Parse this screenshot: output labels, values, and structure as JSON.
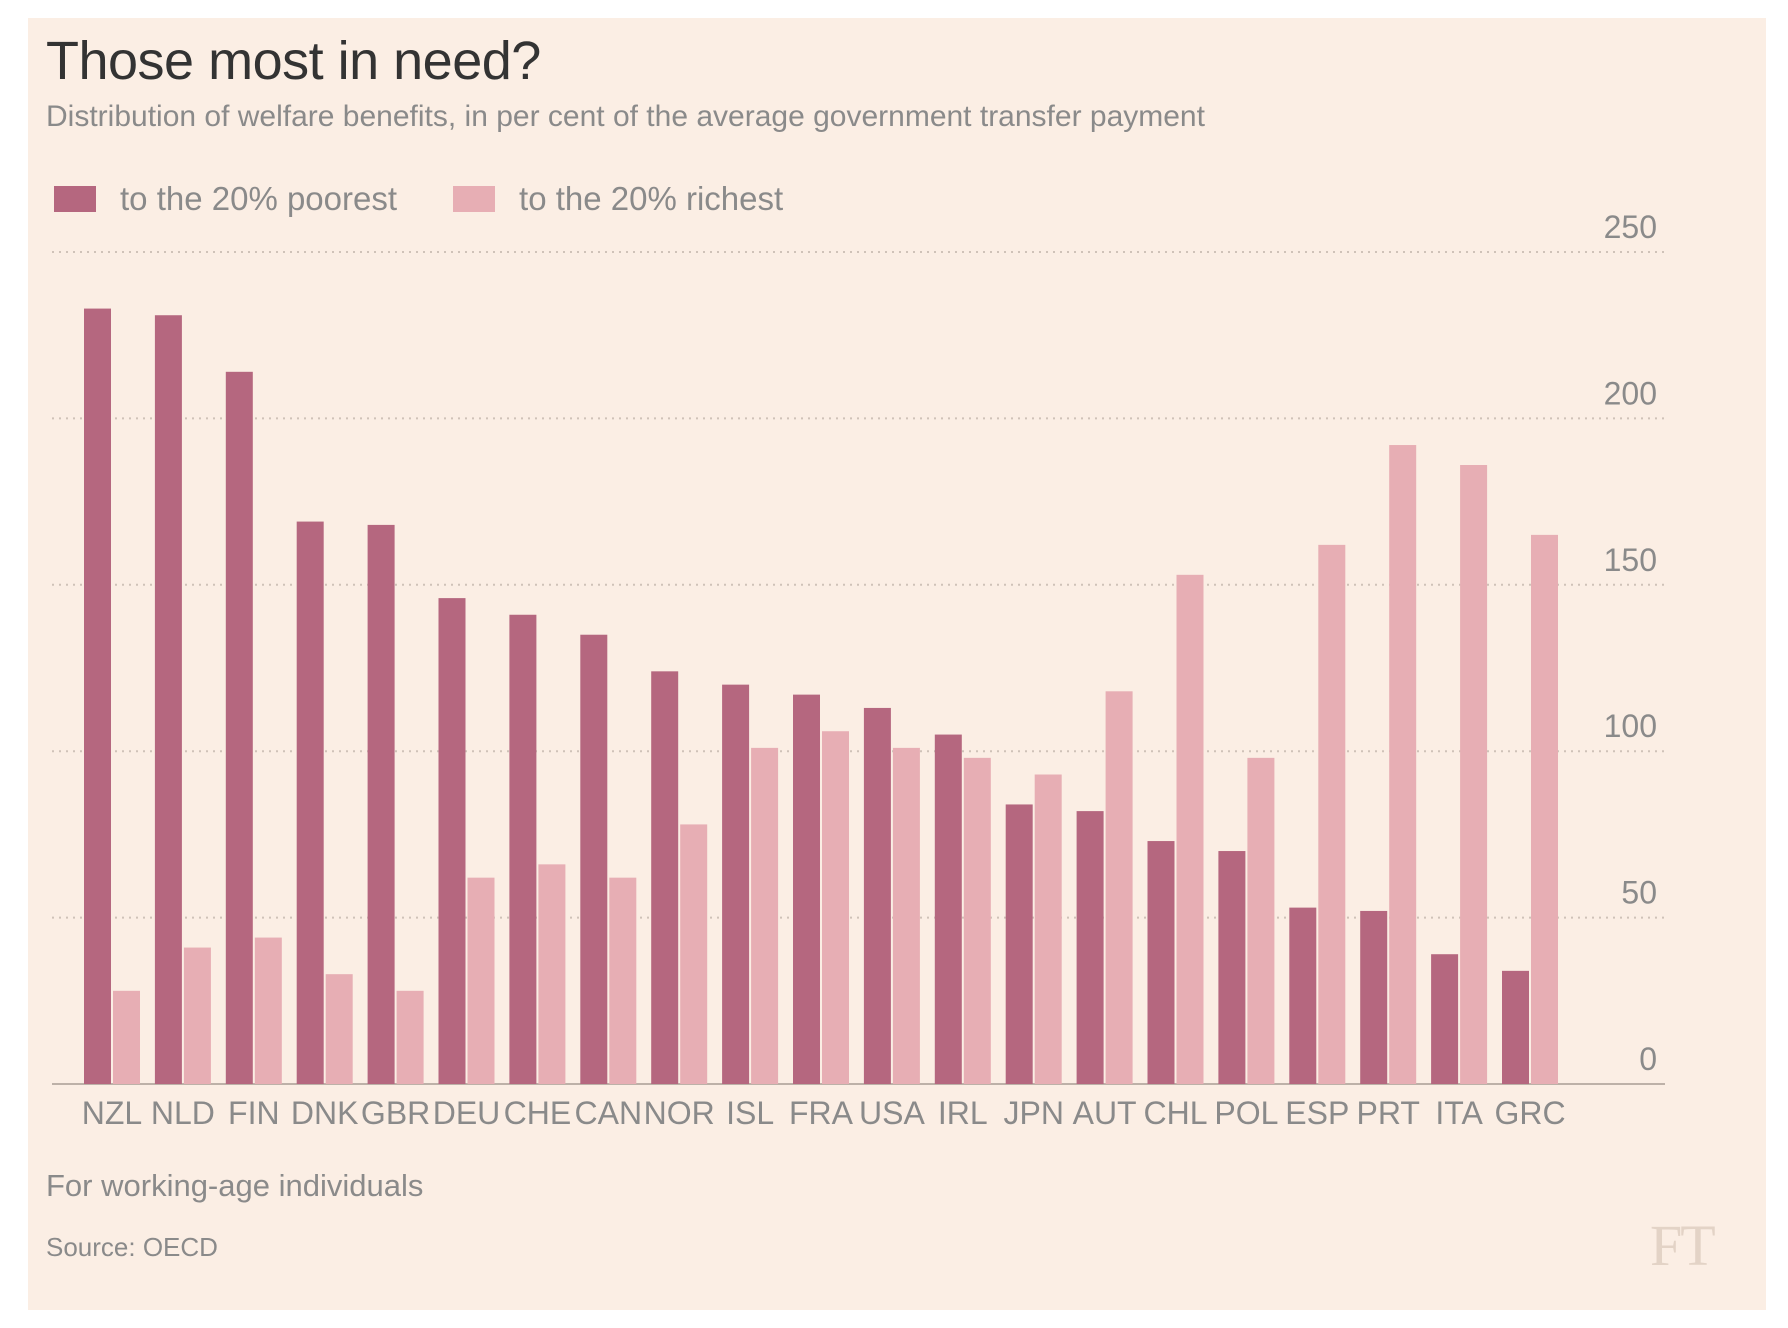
{
  "title": "Those most in need?",
  "subtitle": "Distribution of welfare benefits, in per cent of the average government transfer payment",
  "note": "For working-age individuals",
  "source": "Source: OECD",
  "logo": "FT",
  "colors": {
    "poorest": "#b5677f",
    "richest": "#e7aeb4",
    "background": "#fbeee4",
    "grid": "#cfc2b8",
    "axis": "#bdb1a8",
    "text": "#8a8a8a"
  },
  "chart_data": {
    "type": "bar",
    "categories": [
      "NZL",
      "NLD",
      "FIN",
      "DNK",
      "GBR",
      "DEU",
      "CHE",
      "CAN",
      "NOR",
      "ISL",
      "FRA",
      "USA",
      "IRL",
      "JPN",
      "AUT",
      "CHL",
      "POL",
      "ESP",
      "PRT",
      "ITA",
      "GRC"
    ],
    "series": [
      {
        "name": "to the 20% poorest",
        "values": [
          233,
          231,
          214,
          169,
          168,
          146,
          141,
          135,
          124,
          120,
          117,
          113,
          105,
          84,
          82,
          73,
          70,
          53,
          52,
          39,
          34
        ]
      },
      {
        "name": "to the 20% richest",
        "values": [
          28,
          41,
          44,
          33,
          28,
          62,
          66,
          62,
          78,
          101,
          106,
          101,
          98,
          93,
          118,
          153,
          98,
          162,
          192,
          186,
          165
        ]
      }
    ],
    "ylim": [
      0,
      250
    ],
    "yticks": [
      0,
      50,
      100,
      150,
      200,
      250
    ],
    "xlabel": "",
    "ylabel": "",
    "grid": true,
    "y_axis_side": "right",
    "legend_position": "top-left"
  }
}
